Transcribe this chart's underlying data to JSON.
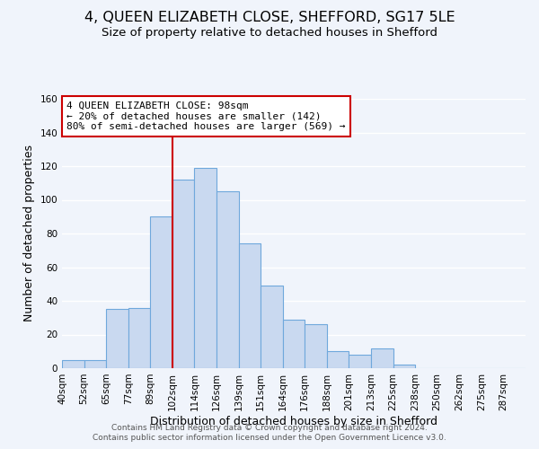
{
  "title": "4, QUEEN ELIZABETH CLOSE, SHEFFORD, SG17 5LE",
  "subtitle": "Size of property relative to detached houses in Shefford",
  "xlabel": "Distribution of detached houses by size in Shefford",
  "ylabel": "Number of detached properties",
  "bin_labels": [
    "40sqm",
    "52sqm",
    "65sqm",
    "77sqm",
    "89sqm",
    "102sqm",
    "114sqm",
    "126sqm",
    "139sqm",
    "151sqm",
    "164sqm",
    "176sqm",
    "188sqm",
    "201sqm",
    "213sqm",
    "225sqm",
    "238sqm",
    "250sqm",
    "262sqm",
    "275sqm",
    "287sqm"
  ],
  "bar_values": [
    5,
    5,
    35,
    36,
    90,
    112,
    119,
    105,
    74,
    49,
    29,
    26,
    10,
    8,
    12,
    2,
    0,
    0,
    0,
    0,
    0
  ],
  "bar_color": "#c9d9f0",
  "bar_edge_color": "#6fa8dc",
  "ylim": [
    0,
    160
  ],
  "yticks": [
    0,
    20,
    40,
    60,
    80,
    100,
    120,
    140,
    160
  ],
  "vline_x": 5,
  "vline_color": "#cc0000",
  "annotation_title": "4 QUEEN ELIZABETH CLOSE: 98sqm",
  "annotation_line1": "← 20% of detached houses are smaller (142)",
  "annotation_line2": "80% of semi-detached houses are larger (569) →",
  "annotation_box_color": "#cc0000",
  "footer_line1": "Contains HM Land Registry data © Crown copyright and database right 2024.",
  "footer_line2": "Contains public sector information licensed under the Open Government Licence v3.0.",
  "bg_color": "#f0f4fb",
  "grid_color": "#ffffff",
  "title_fontsize": 11.5,
  "subtitle_fontsize": 9.5,
  "axis_label_fontsize": 9,
  "tick_fontsize": 7.5,
  "annotation_fontsize": 8,
  "footer_fontsize": 6.5
}
